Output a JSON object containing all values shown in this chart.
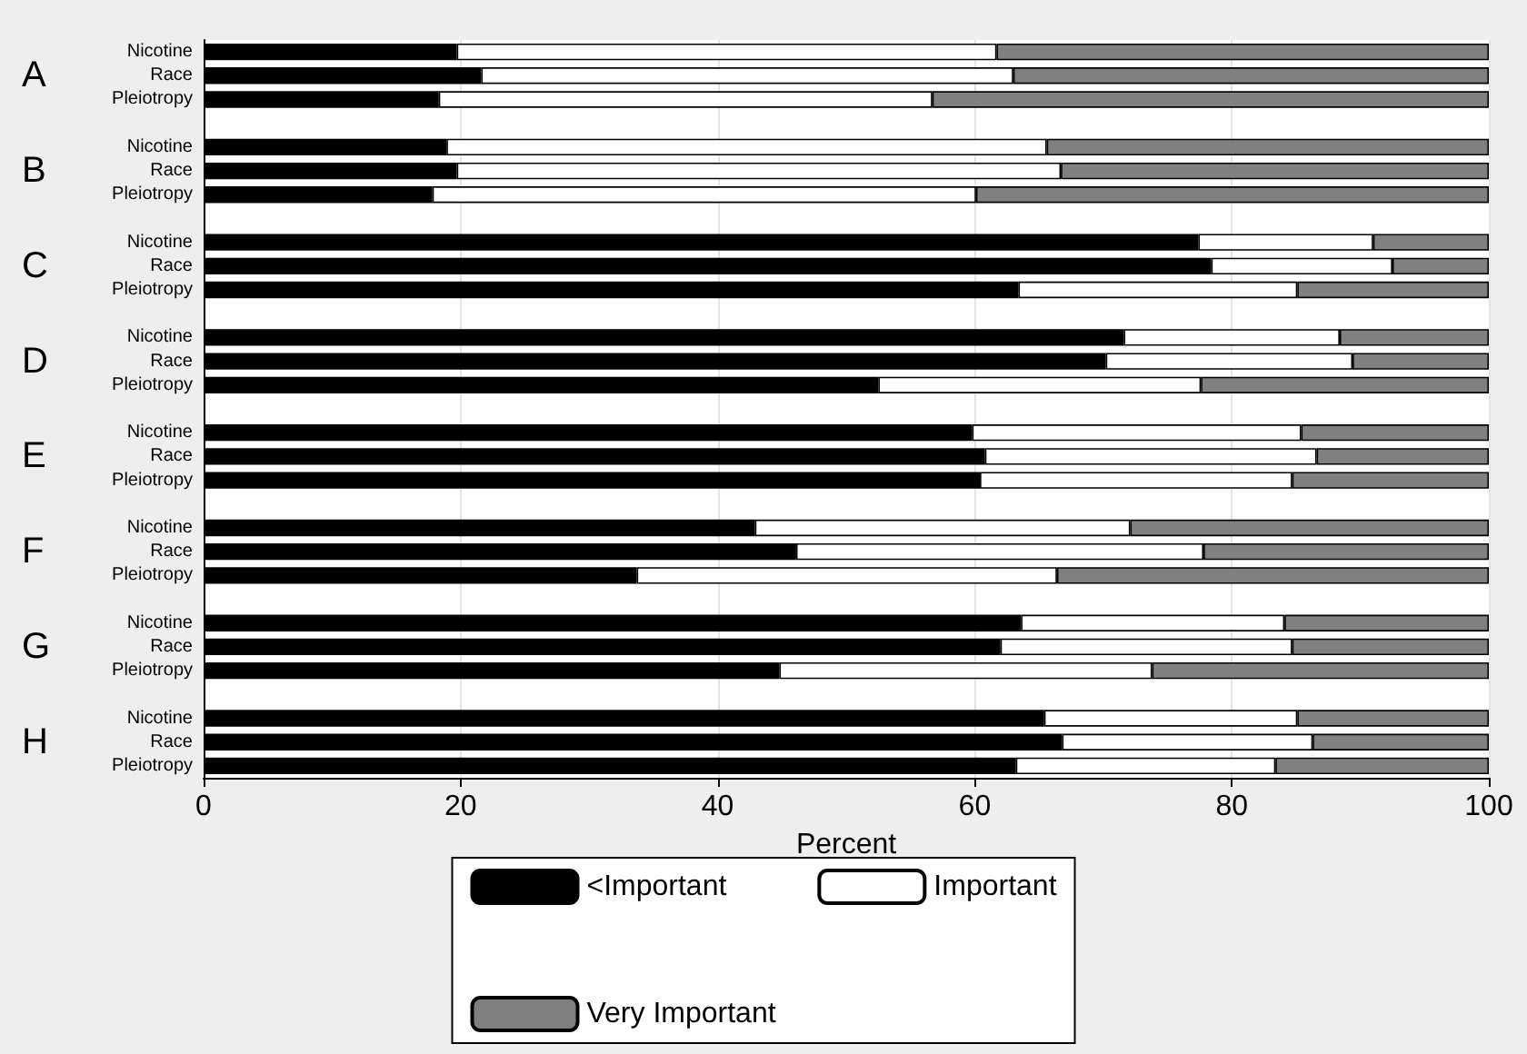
{
  "chart_data": {
    "type": "bar",
    "orientation": "horizontal",
    "stacked": true,
    "xlabel": "Percent",
    "xlim": [
      0,
      100
    ],
    "xticks": [
      0,
      20,
      40,
      60,
      80,
      100
    ],
    "grid": "x",
    "legend": "bottom",
    "categories": [
      "Nicotine",
      "Race",
      "Pleiotropy",
      null,
      "Nicotine",
      "Race",
      "Pleiotropy",
      null,
      "Nicotine",
      "Race",
      "Pleiotropy",
      null,
      "Nicotine",
      "Race",
      "Pleiotropy",
      null,
      "Nicotine",
      "Race",
      "Pleiotropy",
      null,
      "Nicotine",
      "Race",
      "Pleiotropy",
      null,
      "Nicotine",
      "Race",
      "Pleiotropy",
      null,
      "Nicotine",
      "Race",
      "Pleiotropy"
    ],
    "annotations": [
      "A",
      "B",
      "C",
      "D",
      "E",
      "F",
      "G",
      "H"
    ],
    "series": [
      {
        "name": "<Important",
        "color": "#000000",
        "values": [
          19.7,
          21.6,
          18.3,
          null,
          18.9,
          19.7,
          17.8,
          null,
          77.4,
          78.4,
          63.4,
          null,
          71.6,
          70.2,
          52.5,
          null,
          59.8,
          60.8,
          60.4,
          null,
          42.9,
          46.1,
          33.7,
          null,
          63.6,
          62.0,
          44.8,
          null,
          65.4,
          66.8,
          63.2
        ]
      },
      {
        "name": "Important",
        "color": "#ffffff",
        "values": [
          42.0,
          41.4,
          38.4,
          null,
          46.7,
          47.0,
          42.3,
          null,
          13.6,
          14.1,
          21.7,
          null,
          16.8,
          19.2,
          25.1,
          null,
          25.6,
          25.8,
          24.3,
          null,
          29.2,
          31.7,
          32.7,
          null,
          20.5,
          22.7,
          29.0,
          null,
          19.7,
          19.5,
          20.2
        ]
      },
      {
        "name": "Very Important",
        "color": "#808080",
        "values": [
          38.3,
          37.0,
          43.3,
          null,
          34.4,
          33.3,
          39.9,
          null,
          9.0,
          7.5,
          14.9,
          null,
          11.6,
          10.6,
          22.4,
          null,
          14.6,
          13.4,
          15.3,
          null,
          27.9,
          22.2,
          33.6,
          null,
          15.9,
          15.3,
          26.2,
          null,
          14.9,
          13.7,
          16.6
        ]
      }
    ]
  }
}
